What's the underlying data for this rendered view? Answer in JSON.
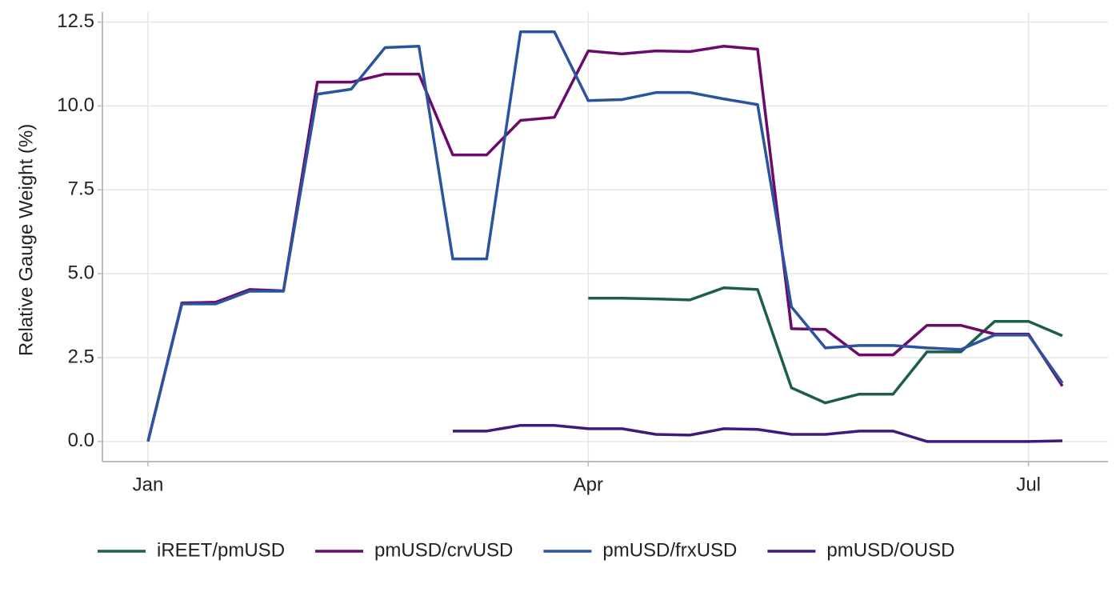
{
  "chart_data": {
    "type": "line",
    "y_label": "Relative Gauge Weight (%)",
    "categories": [
      "Jan",
      null,
      null,
      null,
      null,
      null,
      null,
      null,
      null,
      null,
      null,
      null,
      null,
      "Apr",
      null,
      null,
      null,
      null,
      null,
      null,
      null,
      null,
      null,
      null,
      null,
      null,
      "Jul",
      null
    ],
    "series": [
      {
        "name": "iREET/pmUSD",
        "color": "#1b5e4b",
        "values": [
          null,
          null,
          null,
          null,
          null,
          null,
          null,
          null,
          null,
          null,
          null,
          null,
          null,
          4.27,
          4.27,
          4.25,
          4.22,
          4.58,
          4.53,
          1.6,
          1.15,
          1.41,
          1.41,
          2.67,
          2.67,
          3.58,
          3.58,
          3.15
        ]
      },
      {
        "name": "pmUSD/crvUSD",
        "color": "#6b0a6b",
        "values": [
          0,
          4.13,
          4.15,
          4.53,
          4.49,
          10.71,
          10.71,
          10.95,
          10.95,
          8.54,
          8.54,
          9.57,
          9.66,
          11.64,
          11.55,
          11.64,
          11.62,
          11.78,
          11.69,
          3.36,
          3.34,
          2.58,
          2.58,
          3.46,
          3.46,
          3.2,
          3.2,
          1.65
        ]
      },
      {
        "name": "pmUSD/frxUSD",
        "color": "#2a54a0",
        "values": [
          0,
          4.1,
          4.1,
          4.48,
          4.48,
          10.35,
          10.5,
          11.74,
          11.78,
          5.44,
          5.44,
          12.21,
          12.21,
          10.16,
          10.19,
          10.4,
          10.4,
          10.21,
          10.04,
          4.01,
          2.79,
          2.86,
          2.86,
          2.79,
          2.74,
          3.17,
          3.17,
          1.74
        ]
      },
      {
        "name": "pmUSD/OUSD",
        "color": "#3f1a7e",
        "values": [
          null,
          null,
          null,
          null,
          null,
          null,
          null,
          null,
          null,
          0.31,
          0.31,
          0.48,
          0.48,
          0.38,
          0.38,
          0.21,
          0.19,
          0.38,
          0.36,
          0.21,
          0.21,
          0.31,
          0.31,
          0,
          0,
          0,
          0,
          0.02
        ]
      }
    ],
    "ylim": [
      -0.6,
      12.8
    ],
    "yticks": [
      {
        "value": 0,
        "label": "0.0"
      },
      {
        "value": 2.5,
        "label": "2.5"
      },
      {
        "value": 5,
        "label": "5.0"
      },
      {
        "value": 7.5,
        "label": "7.5"
      },
      {
        "value": 10,
        "label": "10.0"
      },
      {
        "value": 12.5,
        "label": "12.5"
      }
    ],
    "grid": true,
    "legend": "bottom"
  }
}
